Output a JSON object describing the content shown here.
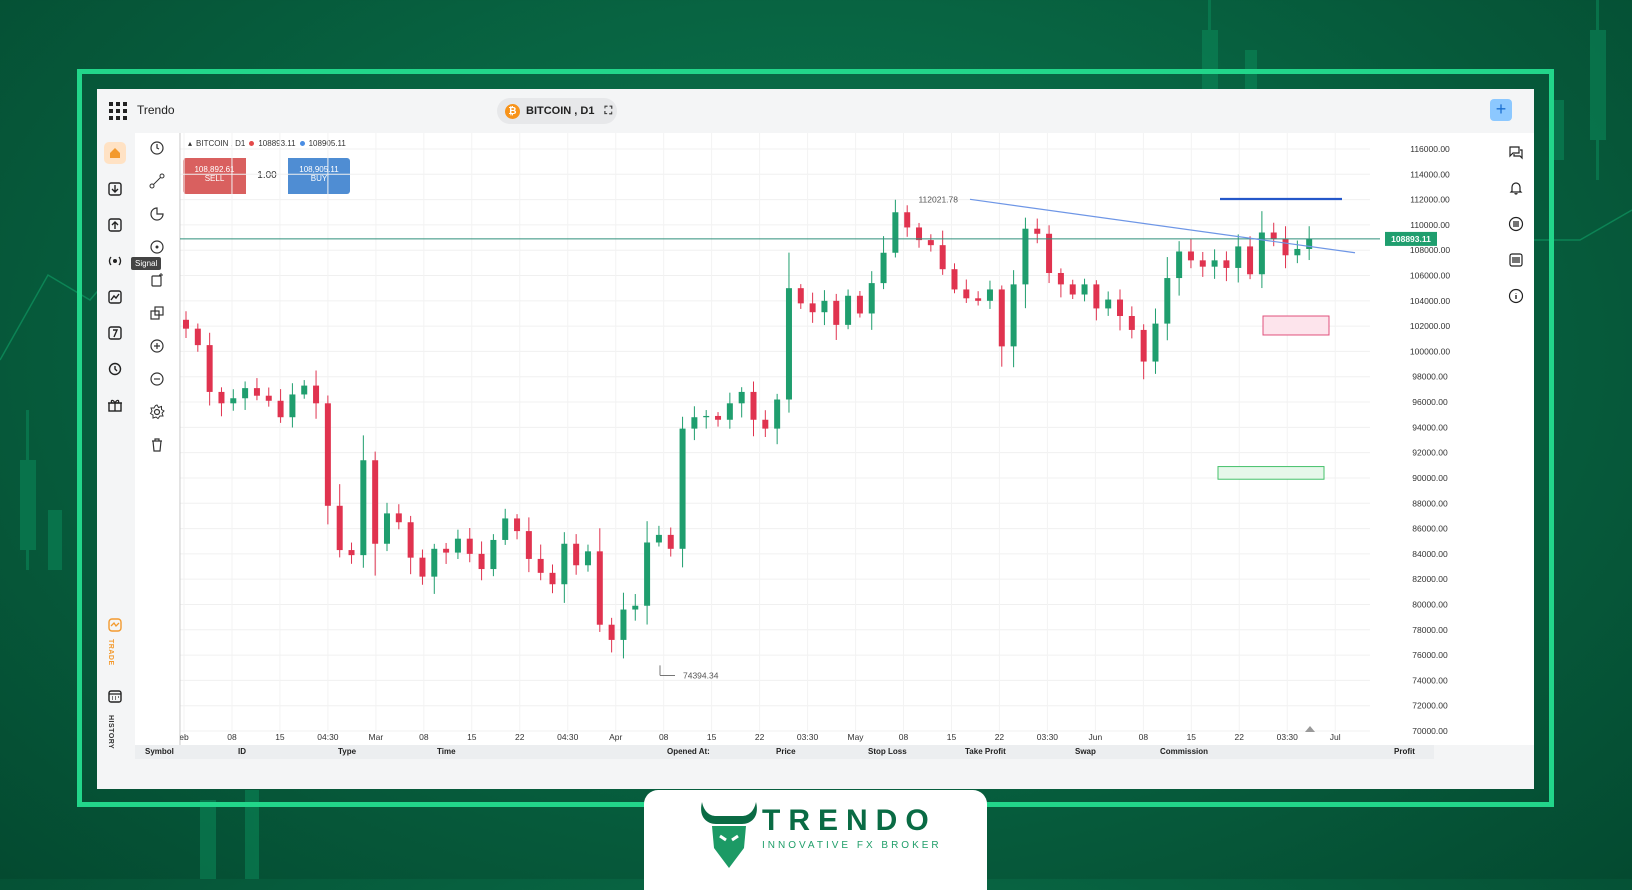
{
  "app": {
    "brand": "Trendo"
  },
  "symbol": {
    "label": "BITCOIN , D1",
    "coin_icon": "bitcoin-icon"
  },
  "chart_header": {
    "symbol": "BITCOIN , D1",
    "bid": "108893.11",
    "ask": "108905.11"
  },
  "trade": {
    "sell_price": "108,892.61",
    "sell_label": "SELL",
    "lot": "1.00",
    "buy_price": "108,905.11",
    "buy_label": "BUY"
  },
  "tools": {
    "tooltip": "Signal"
  },
  "leftnav": {
    "trade_label": "TRADE",
    "history_label": "HISTORY"
  },
  "price_axis": [
    "116000.00",
    "114000.00",
    "112000.00",
    "110000.00",
    "108000.00",
    "106000.00",
    "104000.00",
    "102000.00",
    "100000.00",
    "98000.00",
    "96000.00",
    "94000.00",
    "92000.00",
    "90000.00",
    "88000.00",
    "86000.00",
    "84000.00",
    "82000.00",
    "80000.00",
    "78000.00",
    "76000.00",
    "74000.00",
    "72000.00",
    "70000.00"
  ],
  "current_price_tag": "108893.11",
  "time_axis": [
    "eb",
    "08",
    "15",
    "04:30",
    "Mar",
    "08",
    "15",
    "22",
    "04:30",
    "Apr",
    "08",
    "15",
    "22",
    "03:30",
    "May",
    "08",
    "15",
    "22",
    "03:30",
    "Jun",
    "08",
    "15",
    "22",
    "03:30",
    "Jul"
  ],
  "annotations": {
    "high": "112021.78",
    "low": "74394.34"
  },
  "table_headers": [
    "Symbol",
    "ID",
    "Type",
    "Time",
    "Opened At:",
    "Price",
    "Stop Loss",
    "Take Profit",
    "Swap",
    "Commission",
    "Profit"
  ],
  "colors": {
    "accent": "#22d68a",
    "bull": "#1f9e6e",
    "bear": "#e0334f",
    "sell": "#d9605f",
    "buy": "#4f8dd3"
  },
  "chart_data": {
    "type": "candlestick",
    "title": "",
    "ylim": [
      70000,
      116000
    ],
    "price_line": 108893.11,
    "x_labels": [
      "eb",
      "08",
      "15",
      "04:30",
      "Mar",
      "08",
      "15",
      "22",
      "04:30",
      "Apr",
      "08",
      "15",
      "22",
      "03:30",
      "May",
      "08",
      "15",
      "22",
      "03:30",
      "Jun",
      "08",
      "15",
      "22",
      "03:30",
      "Jul"
    ],
    "close_path": [
      101800,
      100500,
      96800,
      95900,
      96300,
      97100,
      96500,
      96100,
      94800,
      96600,
      97300,
      95900,
      87800,
      84300,
      83900,
      91400,
      84800,
      87200,
      86500,
      83700,
      82200,
      84400,
      84100,
      85200,
      84000,
      82800,
      85100,
      86800,
      85800,
      83600,
      82500,
      81600,
      84800,
      83100,
      84200,
      78400,
      77200,
      79600,
      79900,
      84900,
      85500,
      84400,
      93900,
      94800,
      94900,
      94600,
      95900,
      96800,
      94600,
      93900,
      96200,
      105000,
      103800,
      103100,
      104000,
      102100,
      104400,
      103000,
      105400,
      107800,
      111000,
      109800,
      108800,
      108400,
      106500,
      104900,
      104200,
      104000,
      104900,
      100400,
      105300,
      109700,
      109300,
      106200,
      105300,
      104500,
      105300,
      103400,
      104100,
      102800,
      101700,
      99200,
      102200,
      105800,
      107900,
      107200,
      106700,
      107200,
      106600,
      108300,
      106100,
      109400,
      108900,
      107600,
      108100,
      108893
    ]
  }
}
